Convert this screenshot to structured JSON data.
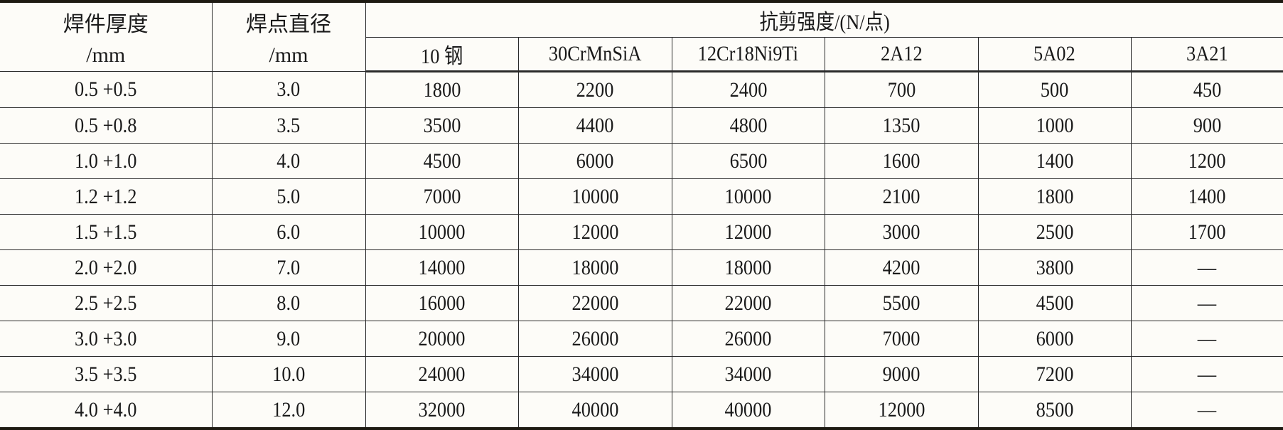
{
  "table": {
    "col_thickness": [
      "焊件厚度",
      "/mm"
    ],
    "col_diameter": [
      "焊点直径",
      "/mm"
    ],
    "group_header": "抗剪强度/(N/点)",
    "materials": [
      "10 钢",
      "30CrMnSiA",
      "12Cr18Ni9Ti",
      "2A12",
      "5A02",
      "3A21"
    ],
    "rows": [
      [
        "0.5 +0.5",
        "3.0",
        "1800",
        "2200",
        "2400",
        "700",
        "500",
        "450"
      ],
      [
        "0.5 +0.8",
        "3.5",
        "3500",
        "4400",
        "4800",
        "1350",
        "1000",
        "900"
      ],
      [
        "1.0 +1.0",
        "4.0",
        "4500",
        "6000",
        "6500",
        "1600",
        "1400",
        "1200"
      ],
      [
        "1.2 +1.2",
        "5.0",
        "7000",
        "10000",
        "10000",
        "2100",
        "1800",
        "1400"
      ],
      [
        "1.5 +1.5",
        "6.0",
        "10000",
        "12000",
        "12000",
        "3000",
        "2500",
        "1700"
      ],
      [
        "2.0 +2.0",
        "7.0",
        "14000",
        "18000",
        "18000",
        "4200",
        "3800",
        "—"
      ],
      [
        "2.5 +2.5",
        "8.0",
        "16000",
        "22000",
        "22000",
        "5500",
        "4500",
        "—"
      ],
      [
        "3.0 +3.0",
        "9.0",
        "20000",
        "26000",
        "26000",
        "7000",
        "6000",
        "—"
      ],
      [
        "3.5 +3.5",
        "10.0",
        "24000",
        "34000",
        "34000",
        "9000",
        "7200",
        "—"
      ],
      [
        "4.0 +4.0",
        "12.0",
        "32000",
        "40000",
        "40000",
        "12000",
        "8500",
        "—"
      ]
    ]
  }
}
